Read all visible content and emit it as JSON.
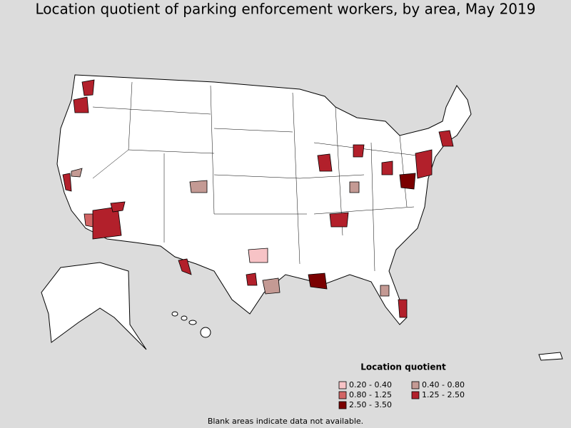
{
  "title": "Location quotient of parking enforcement workers, by area, May 2019",
  "legend": {
    "title": "Location quotient",
    "items": [
      {
        "label": "0.20 - 0.40",
        "color": "#f7c3c6"
      },
      {
        "label": "0.40 - 0.80",
        "color": "#c49a94"
      },
      {
        "label": "0.80 - 1.25",
        "color": "#d26464"
      },
      {
        "label": "1.25 - 2.50",
        "color": "#b2202b"
      },
      {
        "label": "2.50 - 3.50",
        "color": "#7a0000"
      }
    ]
  },
  "note": "Blank areas indicate data not available."
}
